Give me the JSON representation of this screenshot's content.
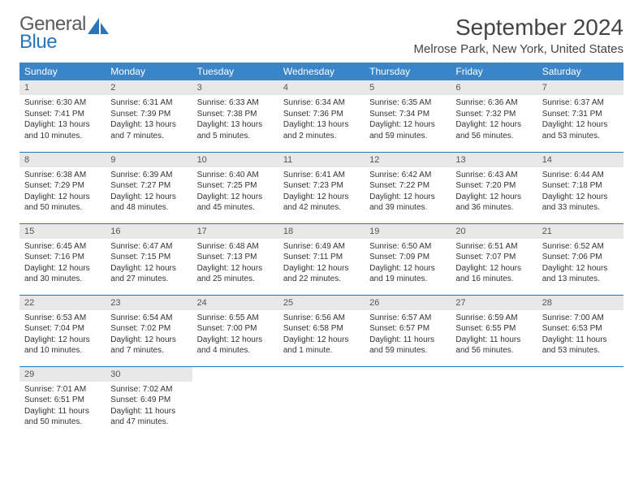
{
  "brand": {
    "word1": "General",
    "word2": "Blue"
  },
  "title": "September 2024",
  "location": "Melrose Park, New York, United States",
  "colors": {
    "header_bg": "#3a85c9",
    "header_text": "#ffffff",
    "daynum_band_bg": "#e8e8e8",
    "row_divider": "#2a74b8",
    "brand_gray": "#5a5a5a",
    "brand_blue": "#2a74b8",
    "body_text": "#333333",
    "page_bg": "#ffffff"
  },
  "typography": {
    "title_fontsize": 28,
    "location_fontsize": 15,
    "header_fontsize": 12,
    "daynum_fontsize": 11,
    "body_fontsize": 10
  },
  "weekdays": [
    "Sunday",
    "Monday",
    "Tuesday",
    "Wednesday",
    "Thursday",
    "Friday",
    "Saturday"
  ],
  "weeks": [
    [
      {
        "num": "1",
        "sunrise": "Sunrise: 6:30 AM",
        "sunset": "Sunset: 7:41 PM",
        "day1": "Daylight: 13 hours",
        "day2": "and 10 minutes."
      },
      {
        "num": "2",
        "sunrise": "Sunrise: 6:31 AM",
        "sunset": "Sunset: 7:39 PM",
        "day1": "Daylight: 13 hours",
        "day2": "and 7 minutes."
      },
      {
        "num": "3",
        "sunrise": "Sunrise: 6:33 AM",
        "sunset": "Sunset: 7:38 PM",
        "day1": "Daylight: 13 hours",
        "day2": "and 5 minutes."
      },
      {
        "num": "4",
        "sunrise": "Sunrise: 6:34 AM",
        "sunset": "Sunset: 7:36 PM",
        "day1": "Daylight: 13 hours",
        "day2": "and 2 minutes."
      },
      {
        "num": "5",
        "sunrise": "Sunrise: 6:35 AM",
        "sunset": "Sunset: 7:34 PM",
        "day1": "Daylight: 12 hours",
        "day2": "and 59 minutes."
      },
      {
        "num": "6",
        "sunrise": "Sunrise: 6:36 AM",
        "sunset": "Sunset: 7:32 PM",
        "day1": "Daylight: 12 hours",
        "day2": "and 56 minutes."
      },
      {
        "num": "7",
        "sunrise": "Sunrise: 6:37 AM",
        "sunset": "Sunset: 7:31 PM",
        "day1": "Daylight: 12 hours",
        "day2": "and 53 minutes."
      }
    ],
    [
      {
        "num": "8",
        "sunrise": "Sunrise: 6:38 AM",
        "sunset": "Sunset: 7:29 PM",
        "day1": "Daylight: 12 hours",
        "day2": "and 50 minutes."
      },
      {
        "num": "9",
        "sunrise": "Sunrise: 6:39 AM",
        "sunset": "Sunset: 7:27 PM",
        "day1": "Daylight: 12 hours",
        "day2": "and 48 minutes."
      },
      {
        "num": "10",
        "sunrise": "Sunrise: 6:40 AM",
        "sunset": "Sunset: 7:25 PM",
        "day1": "Daylight: 12 hours",
        "day2": "and 45 minutes."
      },
      {
        "num": "11",
        "sunrise": "Sunrise: 6:41 AM",
        "sunset": "Sunset: 7:23 PM",
        "day1": "Daylight: 12 hours",
        "day2": "and 42 minutes."
      },
      {
        "num": "12",
        "sunrise": "Sunrise: 6:42 AM",
        "sunset": "Sunset: 7:22 PM",
        "day1": "Daylight: 12 hours",
        "day2": "and 39 minutes."
      },
      {
        "num": "13",
        "sunrise": "Sunrise: 6:43 AM",
        "sunset": "Sunset: 7:20 PM",
        "day1": "Daylight: 12 hours",
        "day2": "and 36 minutes."
      },
      {
        "num": "14",
        "sunrise": "Sunrise: 6:44 AM",
        "sunset": "Sunset: 7:18 PM",
        "day1": "Daylight: 12 hours",
        "day2": "and 33 minutes."
      }
    ],
    [
      {
        "num": "15",
        "sunrise": "Sunrise: 6:45 AM",
        "sunset": "Sunset: 7:16 PM",
        "day1": "Daylight: 12 hours",
        "day2": "and 30 minutes."
      },
      {
        "num": "16",
        "sunrise": "Sunrise: 6:47 AM",
        "sunset": "Sunset: 7:15 PM",
        "day1": "Daylight: 12 hours",
        "day2": "and 27 minutes."
      },
      {
        "num": "17",
        "sunrise": "Sunrise: 6:48 AM",
        "sunset": "Sunset: 7:13 PM",
        "day1": "Daylight: 12 hours",
        "day2": "and 25 minutes."
      },
      {
        "num": "18",
        "sunrise": "Sunrise: 6:49 AM",
        "sunset": "Sunset: 7:11 PM",
        "day1": "Daylight: 12 hours",
        "day2": "and 22 minutes."
      },
      {
        "num": "19",
        "sunrise": "Sunrise: 6:50 AM",
        "sunset": "Sunset: 7:09 PM",
        "day1": "Daylight: 12 hours",
        "day2": "and 19 minutes."
      },
      {
        "num": "20",
        "sunrise": "Sunrise: 6:51 AM",
        "sunset": "Sunset: 7:07 PM",
        "day1": "Daylight: 12 hours",
        "day2": "and 16 minutes."
      },
      {
        "num": "21",
        "sunrise": "Sunrise: 6:52 AM",
        "sunset": "Sunset: 7:06 PM",
        "day1": "Daylight: 12 hours",
        "day2": "and 13 minutes."
      }
    ],
    [
      {
        "num": "22",
        "sunrise": "Sunrise: 6:53 AM",
        "sunset": "Sunset: 7:04 PM",
        "day1": "Daylight: 12 hours",
        "day2": "and 10 minutes."
      },
      {
        "num": "23",
        "sunrise": "Sunrise: 6:54 AM",
        "sunset": "Sunset: 7:02 PM",
        "day1": "Daylight: 12 hours",
        "day2": "and 7 minutes."
      },
      {
        "num": "24",
        "sunrise": "Sunrise: 6:55 AM",
        "sunset": "Sunset: 7:00 PM",
        "day1": "Daylight: 12 hours",
        "day2": "and 4 minutes."
      },
      {
        "num": "25",
        "sunrise": "Sunrise: 6:56 AM",
        "sunset": "Sunset: 6:58 PM",
        "day1": "Daylight: 12 hours",
        "day2": "and 1 minute."
      },
      {
        "num": "26",
        "sunrise": "Sunrise: 6:57 AM",
        "sunset": "Sunset: 6:57 PM",
        "day1": "Daylight: 11 hours",
        "day2": "and 59 minutes."
      },
      {
        "num": "27",
        "sunrise": "Sunrise: 6:59 AM",
        "sunset": "Sunset: 6:55 PM",
        "day1": "Daylight: 11 hours",
        "day2": "and 56 minutes."
      },
      {
        "num": "28",
        "sunrise": "Sunrise: 7:00 AM",
        "sunset": "Sunset: 6:53 PM",
        "day1": "Daylight: 11 hours",
        "day2": "and 53 minutes."
      }
    ],
    [
      {
        "num": "29",
        "sunrise": "Sunrise: 7:01 AM",
        "sunset": "Sunset: 6:51 PM",
        "day1": "Daylight: 11 hours",
        "day2": "and 50 minutes."
      },
      {
        "num": "30",
        "sunrise": "Sunrise: 7:02 AM",
        "sunset": "Sunset: 6:49 PM",
        "day1": "Daylight: 11 hours",
        "day2": "and 47 minutes."
      },
      null,
      null,
      null,
      null,
      null
    ]
  ]
}
